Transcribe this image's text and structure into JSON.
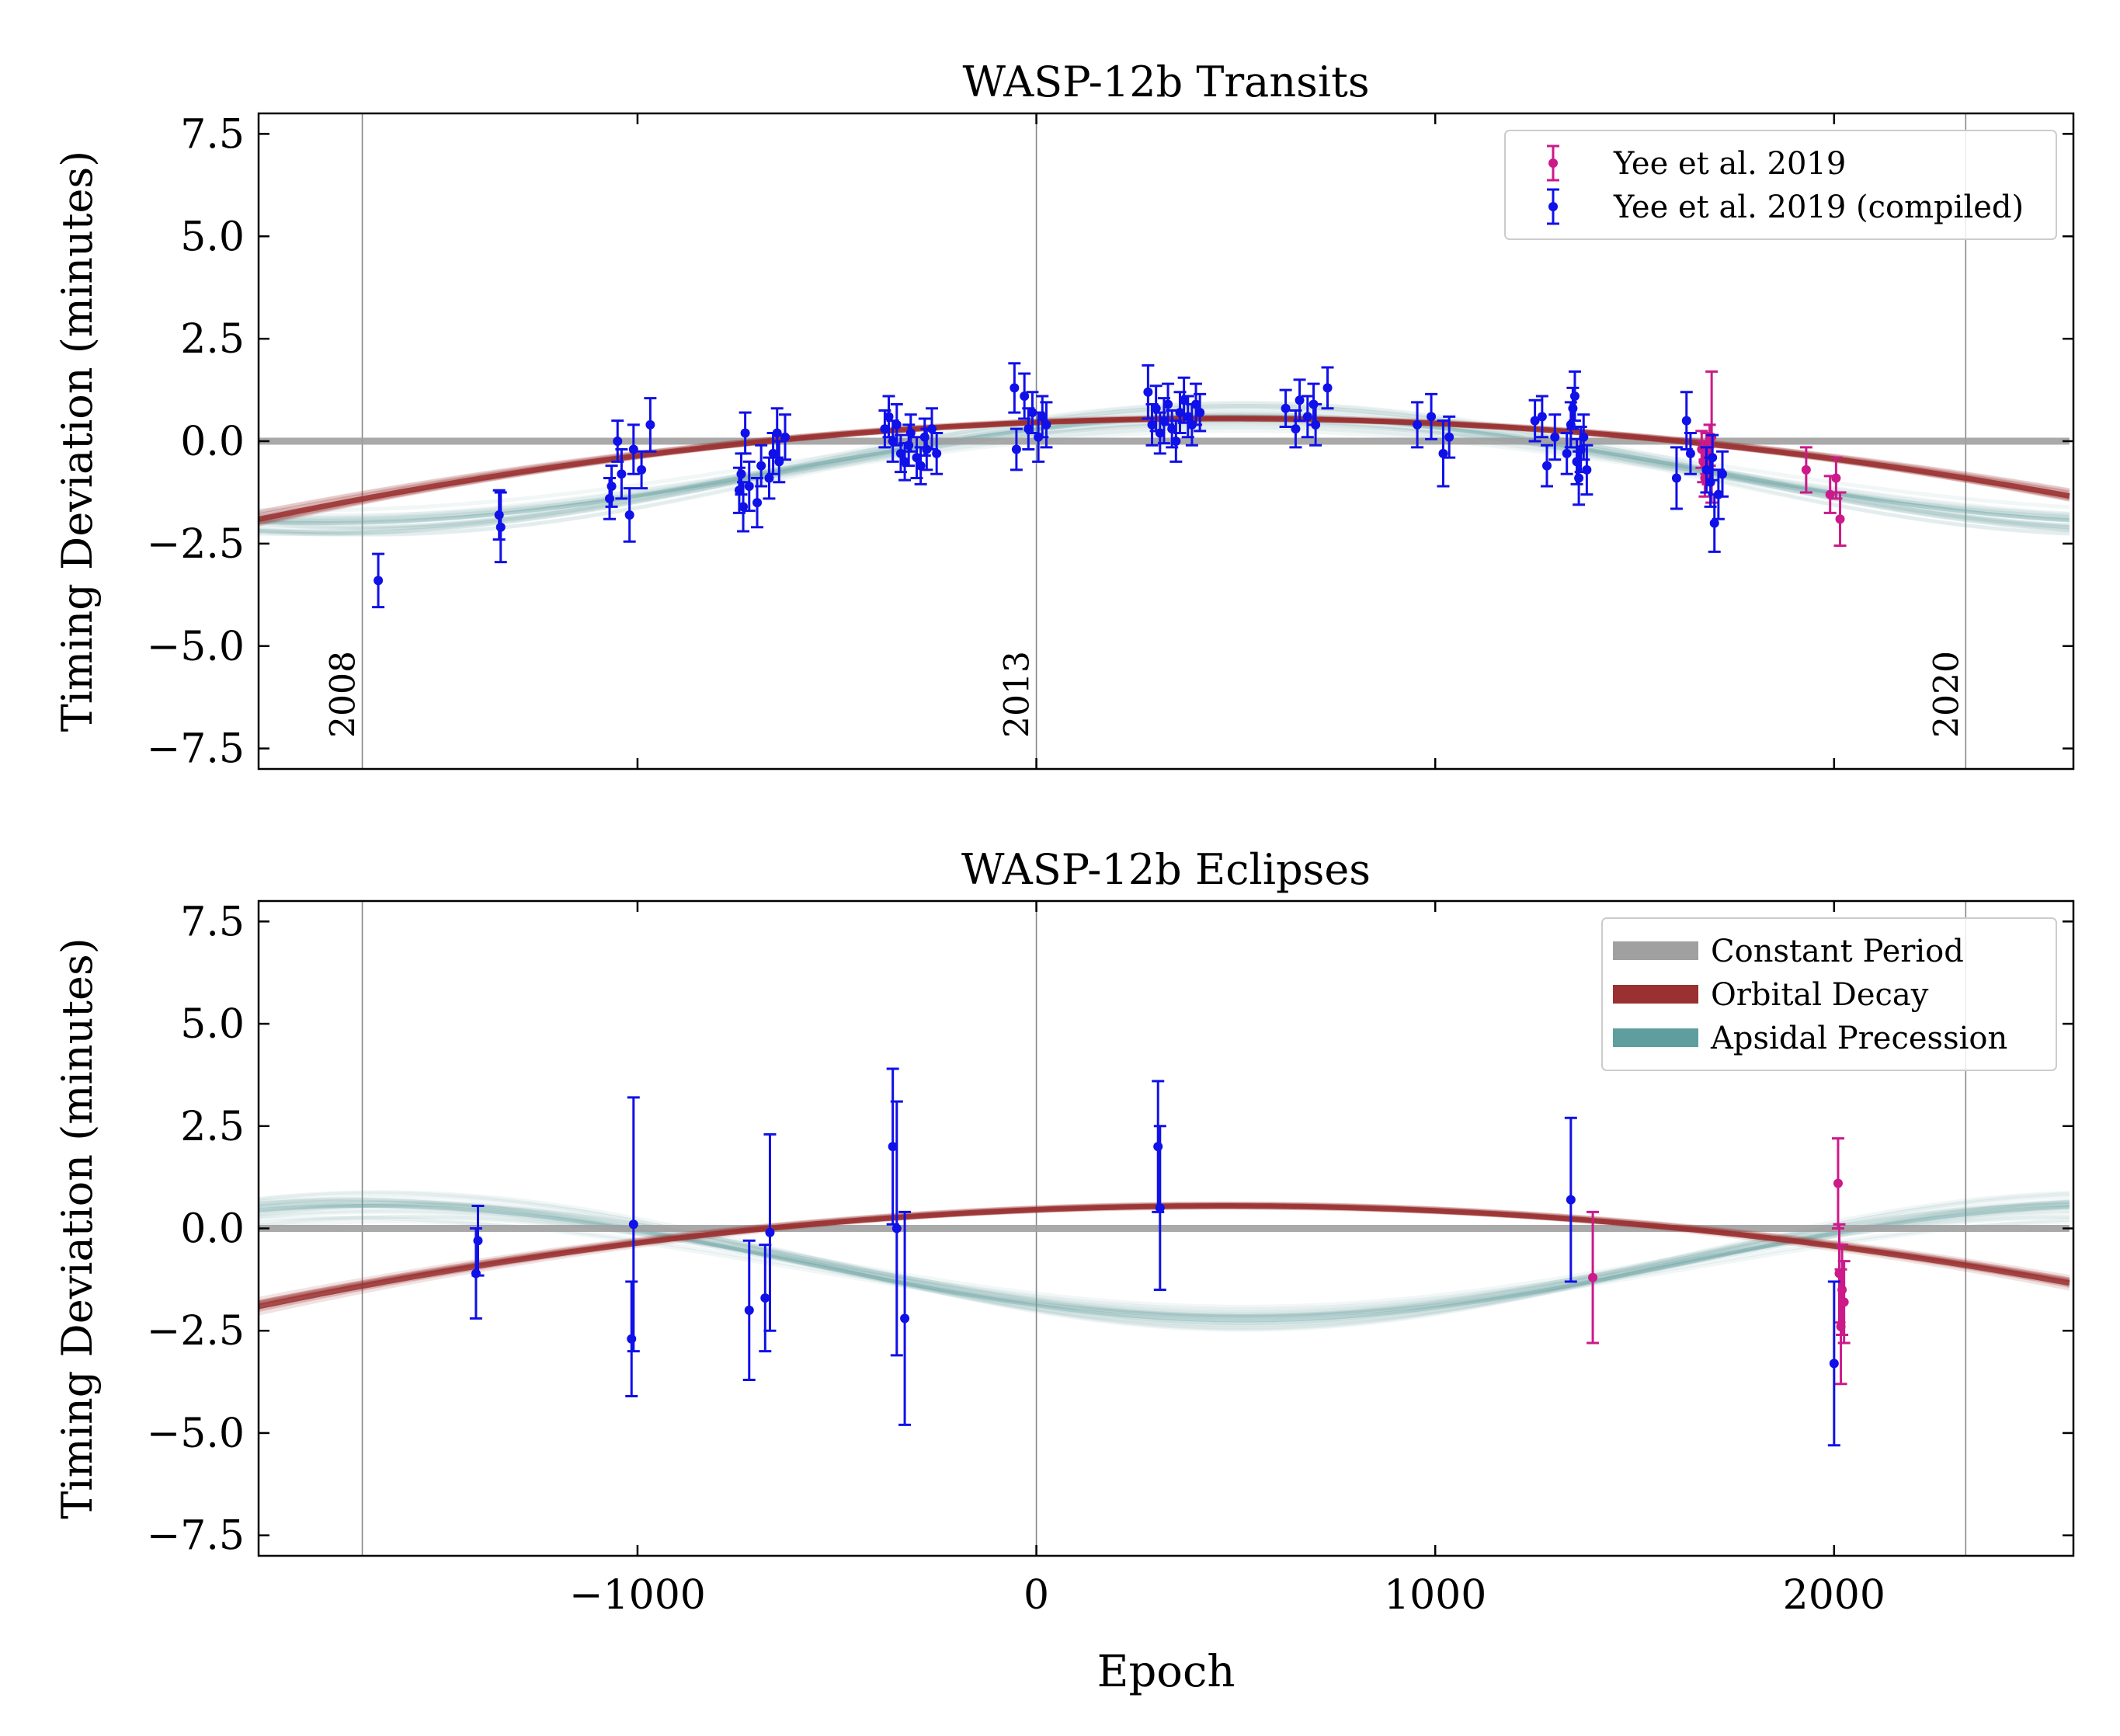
{
  "figure": {
    "xlabel": "Epoch",
    "x_ticks": [
      -1000,
      0,
      1000,
      2000
    ],
    "x_tick_labels": [
      "−1000",
      "0",
      "1000",
      "2000"
    ],
    "y_ticks": [
      -7.5,
      -5,
      -2.5,
      0,
      2.5,
      5,
      7.5
    ],
    "y_tick_labels": [
      "−7.5",
      "−5.0",
      "−2.5",
      "0.0",
      "2.5",
      "5.0",
      "7.5"
    ]
  },
  "colors": {
    "constant": "#a0a0a0",
    "decay": "#9a3030",
    "precession": "#5f9e9e",
    "yee2019": "#cc1a8a",
    "compiled": "#1010e8"
  },
  "chart_data": [
    {
      "type": "scatter",
      "title": "WASP-12b Transits",
      "xlabel": "",
      "ylabel": "Timing Deviation (minutes)",
      "xlim": [
        -1950,
        2600
      ],
      "ylim": [
        -8,
        8
      ],
      "year_markers": [
        {
          "epoch": -1690,
          "label": "2008"
        },
        {
          "epoch": 0,
          "label": "2013"
        },
        {
          "epoch": 2330,
          "label": "2020"
        }
      ],
      "models": {
        "constant": {
          "type": "constant",
          "value": 0
        },
        "decay": {
          "type": "quadratic",
          "a": 0.55,
          "x0": 470,
          "k": 4.2e-07
        },
        "precession": {
          "type": "sinusoid",
          "c": -0.7,
          "amp": 1.3,
          "x0": 520,
          "period": 4600
        }
      },
      "legend": {
        "position": "top-right",
        "entries": [
          {
            "label": "Yee et al. 2019",
            "series": "yee2019"
          },
          {
            "label": "Yee et al. 2019 (compiled)",
            "series": "compiled"
          }
        ]
      },
      "series": [
        {
          "name": "Yee et al. 2019",
          "color_key": "yee2019",
          "points": [
            [
              1668,
              -0.2,
              0.45
            ],
            [
              1672,
              -0.5,
              0.5
            ],
            [
              1676,
              -0.9,
              0.45
            ],
            [
              1680,
              -0.3,
              0.5
            ],
            [
              1684,
              -0.6,
              0.45
            ],
            [
              1688,
              -0.1,
              0.5
            ],
            [
              1693,
              0.1,
              1.6
            ],
            [
              1930,
              -0.7,
              0.55
            ],
            [
              1990,
              -1.3,
              0.45
            ],
            [
              2005,
              -0.9,
              0.5
            ],
            [
              2015,
              -1.9,
              0.65
            ]
          ]
        },
        {
          "name": "Yee et al. 2019 (compiled)",
          "color_key": "compiled",
          "points": [
            [
              -1650,
              -3.4,
              0.65
            ],
            [
              -1347,
              -1.8,
              0.6
            ],
            [
              -1343,
              -2.1,
              0.85
            ],
            [
              -1070,
              -1.4,
              0.5
            ],
            [
              -1065,
              -1.1,
              0.5
            ],
            [
              -1050,
              0.0,
              0.5
            ],
            [
              -1040,
              -0.8,
              0.6
            ],
            [
              -1020,
              -1.8,
              0.65
            ],
            [
              -1010,
              -0.2,
              0.6
            ],
            [
              -990,
              -0.7,
              0.45
            ],
            [
              -968,
              0.4,
              0.65
            ],
            [
              -745,
              -1.2,
              0.55
            ],
            [
              -740,
              -0.8,
              0.5
            ],
            [
              -735,
              -1.6,
              0.6
            ],
            [
              -730,
              0.2,
              0.5
            ],
            [
              -720,
              -1.1,
              0.6
            ],
            [
              -700,
              -1.5,
              0.6
            ],
            [
              -690,
              -0.6,
              0.5
            ],
            [
              -670,
              -0.9,
              0.5
            ],
            [
              -660,
              -0.3,
              0.5
            ],
            [
              -650,
              0.2,
              0.6
            ],
            [
              -645,
              -0.5,
              0.5
            ],
            [
              -630,
              0.1,
              0.55
            ],
            [
              -380,
              0.3,
              0.45
            ],
            [
              -370,
              0.6,
              0.5
            ],
            [
              -360,
              0.0,
              0.5
            ],
            [
              -350,
              0.4,
              0.5
            ],
            [
              -340,
              -0.3,
              0.45
            ],
            [
              -330,
              -0.5,
              0.45
            ],
            [
              -320,
              -0.1,
              0.5
            ],
            [
              -315,
              0.2,
              0.45
            ],
            [
              -300,
              -0.4,
              0.5
            ],
            [
              -290,
              -0.6,
              0.45
            ],
            [
              -280,
              0.1,
              0.45
            ],
            [
              -275,
              -0.2,
              0.5
            ],
            [
              -262,
              0.3,
              0.5
            ],
            [
              -250,
              -0.3,
              0.5
            ],
            [
              -55,
              1.3,
              0.6
            ],
            [
              -50,
              -0.2,
              0.5
            ],
            [
              -30,
              1.1,
              0.55
            ],
            [
              -20,
              0.3,
              0.5
            ],
            [
              -10,
              0.7,
              0.5
            ],
            [
              5,
              0.1,
              0.6
            ],
            [
              15,
              0.6,
              0.5
            ],
            [
              25,
              0.4,
              0.55
            ],
            [
              280,
              1.2,
              0.65
            ],
            [
              290,
              0.4,
              0.5
            ],
            [
              300,
              0.8,
              0.55
            ],
            [
              310,
              0.2,
              0.5
            ],
            [
              320,
              0.5,
              0.55
            ],
            [
              330,
              0.9,
              0.5
            ],
            [
              340,
              0.3,
              0.45
            ],
            [
              350,
              0.0,
              0.5
            ],
            [
              360,
              0.7,
              0.5
            ],
            [
              370,
              1.0,
              0.55
            ],
            [
              380,
              0.6,
              0.5
            ],
            [
              390,
              0.4,
              0.5
            ],
            [
              400,
              0.9,
              0.5
            ],
            [
              410,
              0.7,
              0.45
            ],
            [
              625,
              0.8,
              0.45
            ],
            [
              650,
              0.3,
              0.45
            ],
            [
              660,
              1.0,
              0.5
            ],
            [
              680,
              0.6,
              0.5
            ],
            [
              695,
              0.9,
              0.5
            ],
            [
              700,
              0.4,
              0.5
            ],
            [
              730,
              1.3,
              0.5
            ],
            [
              955,
              0.4,
              0.55
            ],
            [
              990,
              0.6,
              0.55
            ],
            [
              1020,
              -0.3,
              0.8
            ],
            [
              1035,
              0.1,
              0.5
            ],
            [
              1250,
              0.5,
              0.5
            ],
            [
              1268,
              0.6,
              0.5
            ],
            [
              1280,
              -0.6,
              0.5
            ],
            [
              1300,
              0.1,
              0.55
            ],
            [
              1330,
              -0.3,
              0.5
            ],
            [
              1340,
              0.4,
              0.55
            ],
            [
              1345,
              0.8,
              0.5
            ],
            [
              1350,
              1.1,
              0.6
            ],
            [
              1355,
              -0.5,
              0.55
            ],
            [
              1360,
              -0.9,
              0.65
            ],
            [
              1365,
              -0.2,
              0.55
            ],
            [
              1372,
              0.1,
              0.55
            ],
            [
              1380,
              -0.7,
              0.6
            ],
            [
              1605,
              -0.9,
              0.75
            ],
            [
              1630,
              0.5,
              0.7
            ],
            [
              1640,
              -0.3,
              0.5
            ],
            [
              1680,
              -0.7,
              0.55
            ],
            [
              1690,
              -1.0,
              0.6
            ],
            [
              1695,
              -0.4,
              0.55
            ],
            [
              1700,
              -2.0,
              0.7
            ],
            [
              1710,
              -1.3,
              0.6
            ],
            [
              1720,
              -0.8,
              0.55
            ]
          ]
        }
      ]
    },
    {
      "type": "scatter",
      "title": "WASP-12b Eclipses",
      "xlabel": "Epoch",
      "ylabel": "Timing Deviation (minutes)",
      "xlim": [
        -1950,
        2600
      ],
      "ylim": [
        -8,
        8
      ],
      "year_markers": [
        {
          "epoch": -1690,
          "label": ""
        },
        {
          "epoch": 0,
          "label": ""
        },
        {
          "epoch": 2330,
          "label": ""
        }
      ],
      "models": {
        "constant": {
          "type": "constant",
          "value": 0
        },
        "decay": {
          "type": "quadratic",
          "a": 0.55,
          "x0": 470,
          "k": 4.2e-07
        },
        "precession": {
          "type": "sinusoid",
          "c": -0.85,
          "amp": -1.4,
          "x0": 520,
          "period": 4400
        }
      },
      "legend": {
        "position": "top-right",
        "entries": [
          {
            "label": "Constant Period",
            "model": "constant"
          },
          {
            "label": "Orbital Decay",
            "model": "decay"
          },
          {
            "label": "Apsidal Precession",
            "model": "precession"
          }
        ]
      },
      "series": [
        {
          "name": "Yee et al. 2019",
          "color_key": "yee2019",
          "points": [
            [
              1395,
              -1.2,
              1.6
            ],
            [
              2010,
              1.1,
              1.1
            ],
            [
              2013,
              -1.1,
              1.2
            ],
            [
              2017,
              -2.4,
              1.4
            ],
            [
              2020,
              -1.5,
              1.1
            ],
            [
              2025,
              -1.8,
              1.0
            ]
          ]
        },
        {
          "name": "Yee et al. 2019 (compiled)",
          "color_key": "compiled",
          "points": [
            [
              -1405,
              -1.1,
              1.1
            ],
            [
              -1400,
              -0.3,
              0.85
            ],
            [
              -1015,
              -2.7,
              1.4
            ],
            [
              -1010,
              0.1,
              3.1
            ],
            [
              -720,
              -2.0,
              1.7
            ],
            [
              -680,
              -1.7,
              1.3
            ],
            [
              -668,
              -0.1,
              2.4
            ],
            [
              -360,
              2.0,
              1.9
            ],
            [
              -350,
              0.0,
              3.1
            ],
            [
              -330,
              -2.2,
              2.6
            ],
            [
              305,
              2.0,
              1.6
            ],
            [
              310,
              0.5,
              2.0
            ],
            [
              1340,
              0.7,
              2.0
            ],
            [
              2000,
              -3.3,
              2.0
            ]
          ]
        }
      ]
    }
  ]
}
